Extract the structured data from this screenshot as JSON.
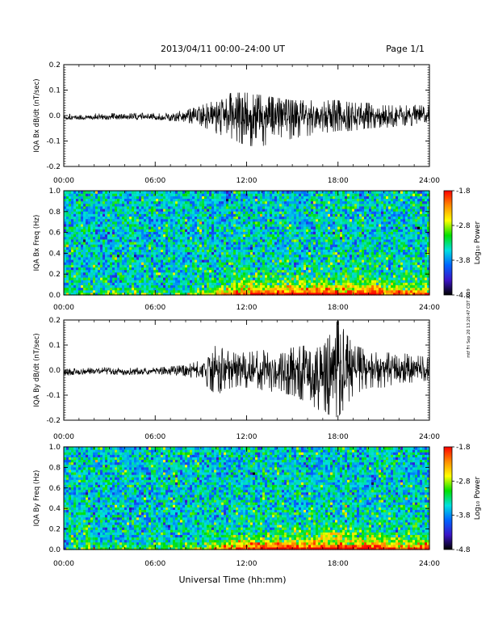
{
  "header": {
    "title": "2013/04/11  00:00–24:00 UT",
    "page": "Page 1/1"
  },
  "footer": {
    "xlabel": "Universal Time (hh:mm)"
  },
  "stamp": "mtf Fri Sep 20 13:20:47 CDT 2019",
  "colorbar": {
    "title": "Log₁₀ Power",
    "ticks": [
      "-1.8",
      "-2.8",
      "-3.8",
      "-4.8"
    ],
    "colors": [
      "#ff0000",
      "#ff8c00",
      "#ffff00",
      "#00e000",
      "#00e0e0",
      "#0064ff",
      "#3c14c8",
      "#000000"
    ]
  },
  "chart_data": [
    {
      "type": "line",
      "ylabel": "IQA Bx dB/dt (nT/sec)",
      "xlim": [
        0,
        24
      ],
      "ylim": [
        -0.2,
        0.2
      ],
      "x_ticks": [
        "00:00",
        "06:00",
        "12:00",
        "18:00",
        "24:00"
      ],
      "y_ticks": [
        "0.2",
        "0.1",
        "0.0",
        "-0.1",
        "-0.2"
      ],
      "envelope": {
        "hours": [
          0,
          2,
          4,
          6,
          8,
          9,
          10,
          11,
          12,
          13,
          14,
          15,
          16,
          17,
          18,
          19,
          20,
          21,
          22,
          23,
          24
        ],
        "baseline": [
          -0.01,
          -0.01,
          -0.005,
          -0.01,
          -0.005,
          0,
          0,
          0,
          0,
          0,
          0,
          0,
          0,
          0,
          0,
          0,
          0,
          0,
          0,
          0,
          0
        ],
        "upper": [
          0.005,
          0.008,
          0.01,
          0.01,
          0.02,
          0.04,
          0.06,
          0.09,
          0.09,
          0.08,
          0.07,
          0.06,
          0.06,
          0.06,
          0.06,
          0.05,
          0.05,
          0.04,
          0.04,
          0.04,
          0.04
        ],
        "lower": [
          -0.015,
          -0.015,
          -0.015,
          -0.015,
          -0.025,
          -0.04,
          -0.07,
          -0.09,
          -0.12,
          -0.12,
          -0.11,
          -0.09,
          -0.08,
          -0.07,
          -0.06,
          -0.06,
          -0.05,
          -0.05,
          -0.04,
          -0.04,
          -0.04
        ]
      }
    },
    {
      "type": "heatmap",
      "ylabel": "IQA Bx Freq (Hz)",
      "xlim": [
        0,
        24
      ],
      "ylim": [
        0.0,
        1.0
      ],
      "x_ticks": [
        "00:00",
        "06:00",
        "12:00",
        "18:00",
        "24:00"
      ],
      "y_ticks": [
        "1.0",
        "0.8",
        "0.6",
        "0.4",
        "0.2",
        "0.0"
      ],
      "colorbar_range": [
        -4.8,
        -1.8
      ]
    },
    {
      "type": "line",
      "ylabel": "IQA By dB/dt (nT/sec)",
      "xlim": [
        0,
        24
      ],
      "ylim": [
        -0.2,
        0.2
      ],
      "x_ticks": [
        "00:00",
        "06:00",
        "12:00",
        "18:00",
        "24:00"
      ],
      "y_ticks": [
        "0.2",
        "0.1",
        "0.0",
        "-0.1",
        "-0.2"
      ],
      "envelope": {
        "hours": [
          0,
          2,
          4,
          6,
          8,
          9,
          10,
          11,
          12,
          13,
          14,
          15,
          16,
          17,
          18,
          19,
          20,
          21,
          22,
          23,
          24
        ],
        "baseline": [
          -0.01,
          -0.005,
          -0.01,
          -0.005,
          0,
          0,
          0,
          0,
          0,
          0,
          0,
          0,
          0,
          0,
          0,
          0,
          0,
          0,
          0,
          0,
          0
        ],
        "upper": [
          0.005,
          0.01,
          0.01,
          0.01,
          0.02,
          0.04,
          0.1,
          0.07,
          0.07,
          0.08,
          0.08,
          0.09,
          0.1,
          0.09,
          0.2,
          0.1,
          0.08,
          0.07,
          0.07,
          0.06,
          0.05
        ],
        "lower": [
          -0.02,
          -0.015,
          -0.02,
          -0.015,
          -0.025,
          -0.04,
          -0.1,
          -0.07,
          -0.07,
          -0.08,
          -0.09,
          -0.1,
          -0.13,
          -0.17,
          -0.19,
          -0.1,
          -0.07,
          -0.07,
          -0.05,
          -0.05,
          -0.04
        ]
      }
    },
    {
      "type": "heatmap",
      "ylabel": "IQA By Freq (Hz)",
      "xlim": [
        0,
        24
      ],
      "ylim": [
        0.0,
        1.0
      ],
      "x_ticks": [
        "00:00",
        "06:00",
        "12:00",
        "18:00",
        "24:00"
      ],
      "y_ticks": [
        "1.0",
        "0.8",
        "0.6",
        "0.4",
        "0.2",
        "0.0"
      ],
      "colorbar_range": [
        -4.8,
        -1.8
      ]
    }
  ]
}
